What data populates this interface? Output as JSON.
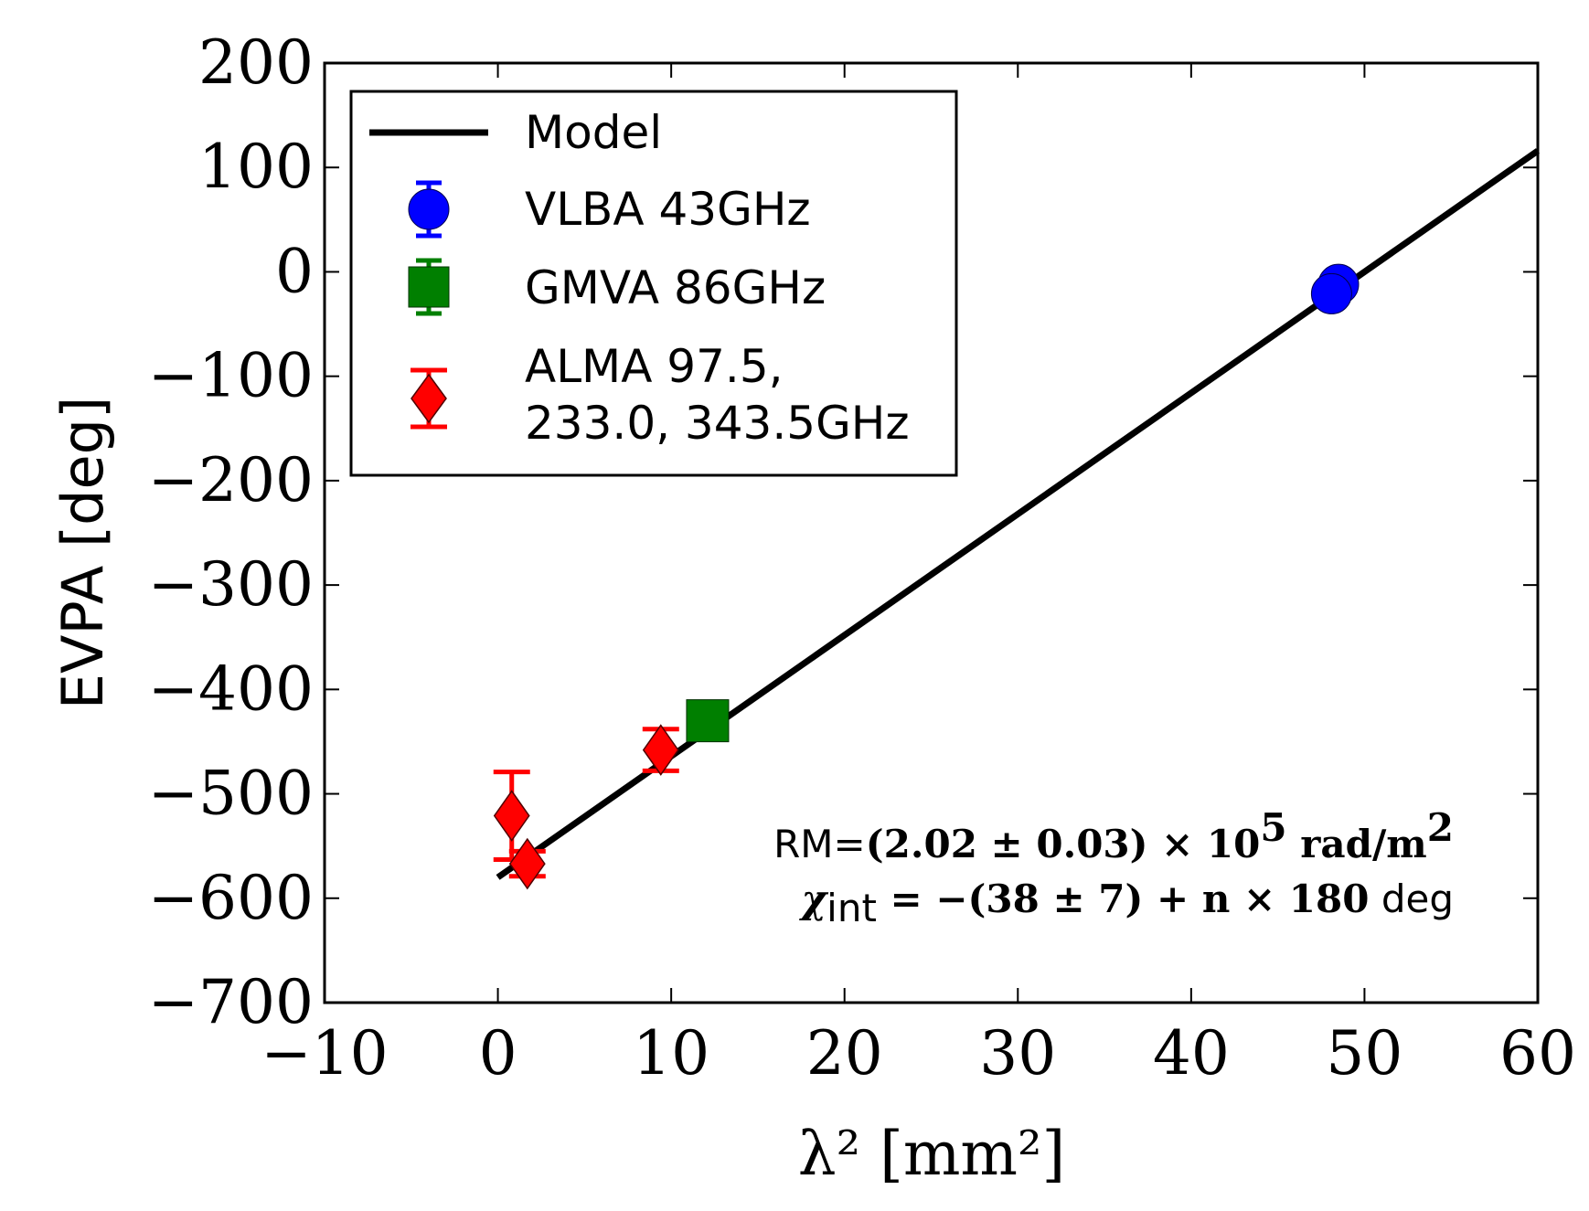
{
  "chart_data": {
    "type": "scatter",
    "xlabel": "λ² [mm²]",
    "ylabel": "EVPA [deg]",
    "xlim": [
      -10,
      60
    ],
    "ylim": [
      -700,
      200
    ],
    "xticks": [
      -10,
      0,
      10,
      20,
      30,
      40,
      50,
      60
    ],
    "yticks": [
      200,
      100,
      0,
      -100,
      -200,
      -300,
      -400,
      -500,
      -600,
      -700
    ],
    "grid": false,
    "legend_position": "upper-left",
    "legend": [
      "Model",
      "VLBA 43GHz",
      "GMVA 86GHz",
      "ALMA 97.5,",
      "233.0, 343.5GHz"
    ],
    "model": {
      "name": "Model",
      "color": "#000000",
      "x": [
        0,
        60
      ],
      "y": [
        -580,
        116
      ]
    },
    "series": [
      {
        "name": "VLBA 43GHz",
        "marker": "circle",
        "color": "#0000ff",
        "points": [
          {
            "x": 48.5,
            "y": -12,
            "err": 4
          },
          {
            "x": 48.1,
            "y": -21,
            "err": 4
          }
        ]
      },
      {
        "name": "GMVA 86GHz",
        "marker": "square",
        "color": "#007f00",
        "points": [
          {
            "x": 12.1,
            "y": -430,
            "err": 5
          }
        ]
      },
      {
        "name": "ALMA 97.5, 233.0, 343.5GHz",
        "marker": "diamond",
        "color": "#ff0000",
        "points": [
          {
            "x": 0.8,
            "y": -521,
            "err": 42
          },
          {
            "x": 1.7,
            "y": -567,
            "err": 12
          },
          {
            "x": 9.4,
            "y": -458,
            "err": 20
          }
        ]
      }
    ],
    "annotations": {
      "rm_prefix": "RM=",
      "rm_value": "(2.02 ± 0.03) × 10",
      "rm_exp": "5",
      "rm_units": " rad/m",
      "rm_units_exp": "2",
      "chi_symbol": "χ",
      "chi_sub": "int",
      "chi_value": " = −(38 ± 7) + n × 180",
      "chi_units": " deg"
    }
  }
}
